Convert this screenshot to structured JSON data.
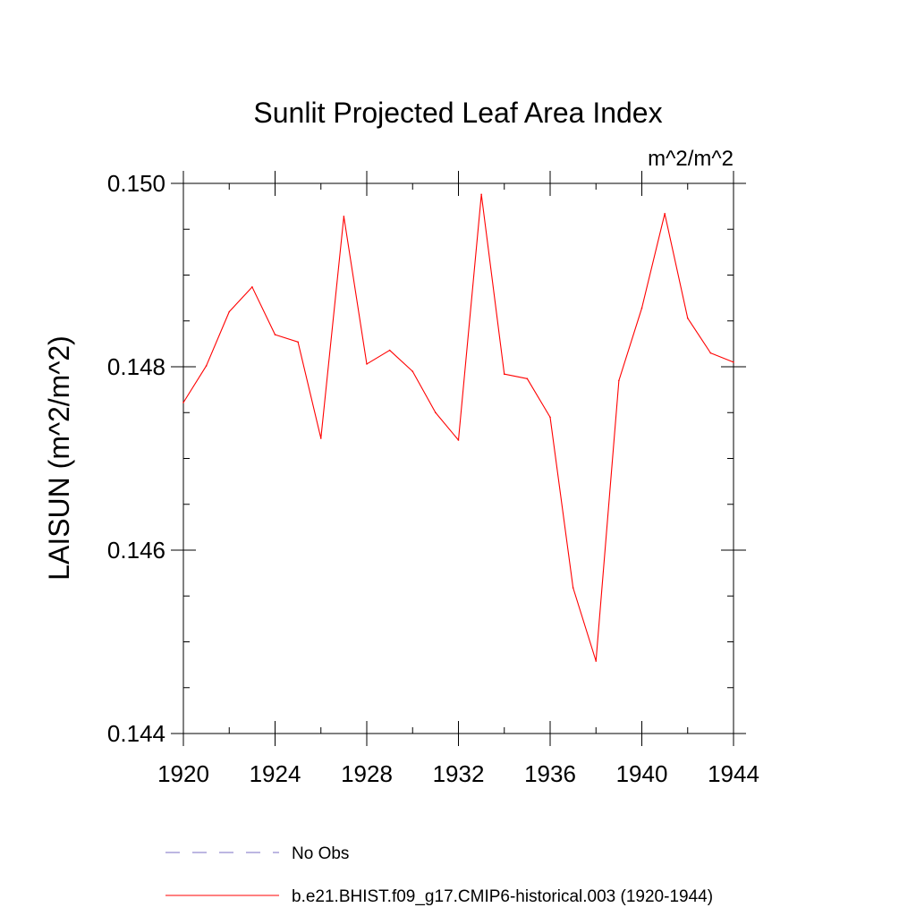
{
  "chart_data": {
    "type": "line",
    "title": "Sunlit Projected Leaf Area Index",
    "units_label": "m^2/m^2",
    "ylabel": "LAISUN  (m^2/m^2)",
    "xlabel": "",
    "xlim": [
      1920,
      1944
    ],
    "ylim": [
      0.144,
      0.15
    ],
    "x_ticks": [
      1920,
      1924,
      1928,
      1932,
      1936,
      1940,
      1944
    ],
    "x_tick_labels": [
      "1920",
      "1924",
      "1928",
      "1932",
      "1936",
      "1940",
      "1944"
    ],
    "y_ticks": [
      0.144,
      0.146,
      0.148,
      0.15
    ],
    "y_tick_labels": [
      "0.144",
      "0.146",
      "0.148",
      "0.150"
    ],
    "y_minor_step": 0.0005,
    "x_minor_step": 2,
    "series": [
      {
        "name": "b.e21.BHIST.f09_g17.CMIP6-historical.003 (1920-1944)",
        "color": "#ff0000",
        "style": "solid",
        "x": [
          1920,
          1921,
          1922,
          1923,
          1924,
          1925,
          1926,
          1927,
          1928,
          1929,
          1930,
          1931,
          1932,
          1933,
          1934,
          1935,
          1936,
          1937,
          1938,
          1939,
          1940,
          1941,
          1942,
          1943,
          1944
        ],
        "values": [
          0.14761,
          0.14801,
          0.1486,
          0.14887,
          0.14835,
          0.14827,
          0.14722,
          0.14964,
          0.14803,
          0.14818,
          0.14795,
          0.1475,
          0.1472,
          0.14988,
          0.14792,
          0.14787,
          0.14745,
          0.14559,
          0.14479,
          0.14785,
          0.14864,
          0.14967,
          0.14853,
          0.14815,
          0.14805
        ]
      }
    ],
    "legend": [
      {
        "label": "No Obs",
        "color": "#7b6fc4",
        "style": "dashed"
      },
      {
        "label": "b.e21.BHIST.f09_g17.CMIP6-historical.003 (1920-1944)",
        "color": "#ff0000",
        "style": "solid"
      }
    ]
  }
}
